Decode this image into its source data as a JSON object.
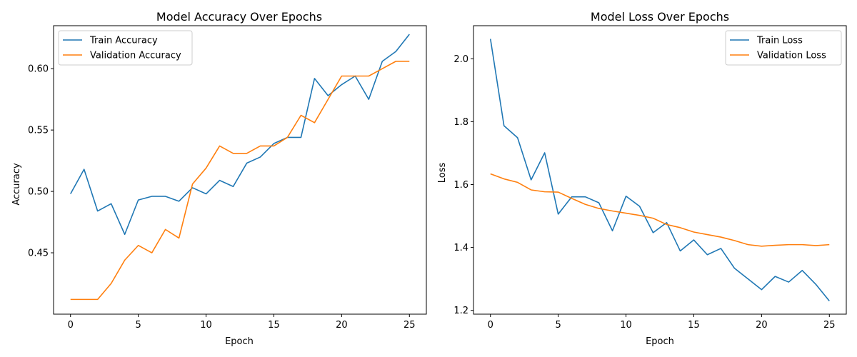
{
  "chart_data": [
    {
      "type": "line",
      "title": "Model Accuracy Over Epochs",
      "xlabel": "Epoch",
      "ylabel": "Accuracy",
      "xlim": [
        -1.25,
        26.25
      ],
      "ylim": [
        0.4,
        0.635
      ],
      "xticks": [
        0,
        5,
        10,
        15,
        20,
        25
      ],
      "xtick_labels": [
        "0",
        "5",
        "10",
        "15",
        "20",
        "25"
      ],
      "yticks": [
        0.45,
        0.5,
        0.55,
        0.6
      ],
      "ytick_labels": [
        "0.45",
        "0.50",
        "0.55",
        "0.60"
      ],
      "grid": false,
      "legend": "upper-left",
      "x": [
        0,
        1,
        2,
        3,
        4,
        5,
        6,
        7,
        8,
        9,
        10,
        11,
        12,
        13,
        14,
        15,
        16,
        17,
        18,
        19,
        20,
        21,
        22,
        23,
        24,
        25
      ],
      "series": [
        {
          "name": "Train Accuracy",
          "color": "#1f77b4",
          "values": [
            0.498,
            0.518,
            0.484,
            0.49,
            0.465,
            0.493,
            0.496,
            0.496,
            0.492,
            0.503,
            0.498,
            0.509,
            0.504,
            0.523,
            0.528,
            0.539,
            0.544,
            0.544,
            0.592,
            0.578,
            0.587,
            0.594,
            0.575,
            0.606,
            0.614,
            0.628
          ]
        },
        {
          "name": "Validation Accuracy",
          "color": "#ff7f0e",
          "values": [
            0.412,
            0.412,
            0.412,
            0.425,
            0.444,
            0.456,
            0.45,
            0.469,
            0.462,
            0.506,
            0.519,
            0.537,
            0.531,
            0.531,
            0.537,
            0.537,
            0.544,
            0.562,
            0.556,
            0.575,
            0.594,
            0.594,
            0.594,
            0.6,
            0.606,
            0.606
          ]
        }
      ]
    },
    {
      "type": "line",
      "title": "Model Loss Over Epochs",
      "xlabel": "Epoch",
      "ylabel": "Loss",
      "xlim": [
        -1.25,
        26.25
      ],
      "ylim": [
        1.188,
        2.105
      ],
      "xticks": [
        0,
        5,
        10,
        15,
        20,
        25
      ],
      "xtick_labels": [
        "0",
        "5",
        "10",
        "15",
        "20",
        "25"
      ],
      "yticks": [
        1.2,
        1.4,
        1.6,
        1.8,
        2.0
      ],
      "ytick_labels": [
        "1.2",
        "1.4",
        "1.6",
        "1.8",
        "2.0"
      ],
      "grid": false,
      "legend": "upper-right",
      "x": [
        0,
        1,
        2,
        3,
        4,
        5,
        6,
        7,
        8,
        9,
        10,
        11,
        12,
        13,
        14,
        15,
        16,
        17,
        18,
        19,
        20,
        21,
        22,
        23,
        24,
        25
      ],
      "series": [
        {
          "name": "Train Loss",
          "color": "#1f77b4",
          "values": [
            2.063,
            1.787,
            1.749,
            1.615,
            1.701,
            1.506,
            1.561,
            1.561,
            1.542,
            1.453,
            1.563,
            1.531,
            1.447,
            1.479,
            1.389,
            1.424,
            1.377,
            1.397,
            1.334,
            1.3,
            1.266,
            1.308,
            1.29,
            1.327,
            1.283,
            1.23
          ]
        },
        {
          "name": "Validation Loss",
          "color": "#ff7f0e",
          "values": [
            1.634,
            1.618,
            1.607,
            1.583,
            1.577,
            1.576,
            1.556,
            1.537,
            1.524,
            1.516,
            1.509,
            1.502,
            1.493,
            1.473,
            1.463,
            1.449,
            1.441,
            1.433,
            1.422,
            1.409,
            1.404,
            1.407,
            1.409,
            1.409,
            1.406,
            1.409
          ]
        }
      ]
    }
  ]
}
